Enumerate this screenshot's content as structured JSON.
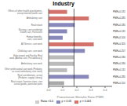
{
  "chart_data": {
    "type": "bar",
    "orientation": "horizontal",
    "title": "Industry",
    "xlabel": "Proportionate Mortality Ratio (PMR)",
    "categories": [
      "Offices of other health practitioners, except mental health care",
      "Ambulatory care",
      "Real estate",
      "Nursing, care residential health care, Forestville",
      "Human benefits, care, care work",
      "All Service, care work",
      "Child day care, care work",
      "Educational and Facility, Real work (Animal care, Pet advocacy)",
      "Ambulatory care work",
      "Other professional care work (Pediatric as usual ambulatory care work)",
      "Real contributions, actual (Pediatric supply Library)",
      "Real estate, furniture store, care actual goods, particular parts"
    ],
    "values": [
      0.131,
      0.285,
      0.185,
      0.131,
      0.1,
      0.32,
      0.257,
      0.18,
      0.18,
      0.131,
      0.285,
      0.11
    ],
    "colors": [
      "#d4736b",
      "#d4736b",
      "#8888bb",
      "#8888bb",
      "#8888bb",
      "#d4736b",
      "#8888bb",
      "#bbbbbb",
      "#bbbbbb",
      "#bbbbbb",
      "#8888bb",
      "#aaaaaa"
    ],
    "data_labels": true,
    "value_labels": [
      "PMR=0.131",
      "PMR=0.285",
      "PMR=0.185",
      "PMR=0.131",
      "PMR=0.100",
      "PMR=0.320",
      "PMR=0.257",
      "PMR=0.180",
      "PMR=0.180",
      "PMR=0.131",
      "PMR=0.285",
      "PMR=0.110"
    ],
    "baseline": 0.18,
    "legend": "bottom",
    "legend_items": [
      {
        "label": "Ratio <1.0",
        "color": "#cccccc"
      },
      {
        "label": "p < 0.05",
        "color": "#8888bb"
      },
      {
        "label": "p < 0.001",
        "color": "#d4736b"
      }
    ],
    "xlim": [
      0,
      0.45
    ],
    "xticks": [
      {
        "value": 0,
        "label": "0.0"
      },
      0.1,
      0.2,
      0.3,
      0.4
    ],
    "grid": false
  }
}
